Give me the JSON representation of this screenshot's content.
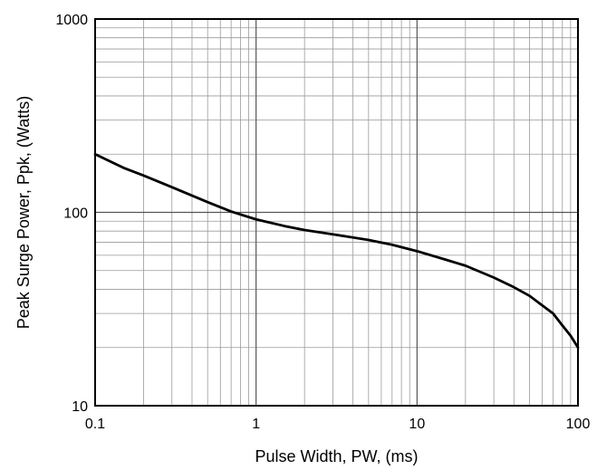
{
  "chart_data": {
    "type": "line",
    "title": "",
    "xlabel": "Pulse Width, PW, (ms)",
    "ylabel": "Peak Surge Power, Ppk, (Watts)",
    "xscale": "log",
    "yscale": "log",
    "xlim": [
      0.1,
      100
    ],
    "ylim": [
      10,
      1000
    ],
    "grid": true,
    "x_ticks": [
      "0.1",
      "1",
      "10",
      "100"
    ],
    "y_ticks": [
      "10",
      "100",
      "1000"
    ],
    "series": [
      {
        "color": "#000000",
        "x": [
          0.1,
          0.15,
          0.2,
          0.3,
          0.5,
          0.7,
          1,
          1.5,
          2,
          3,
          5,
          7,
          10,
          15,
          20,
          30,
          40,
          50,
          60,
          70,
          80,
          90,
          100
        ],
        "y": [
          200,
          170,
          155,
          135,
          113,
          101,
          92,
          85,
          81,
          77,
          72,
          68,
          63,
          57,
          53,
          46,
          41,
          37,
          33,
          30,
          26,
          23,
          20
        ]
      }
    ]
  }
}
